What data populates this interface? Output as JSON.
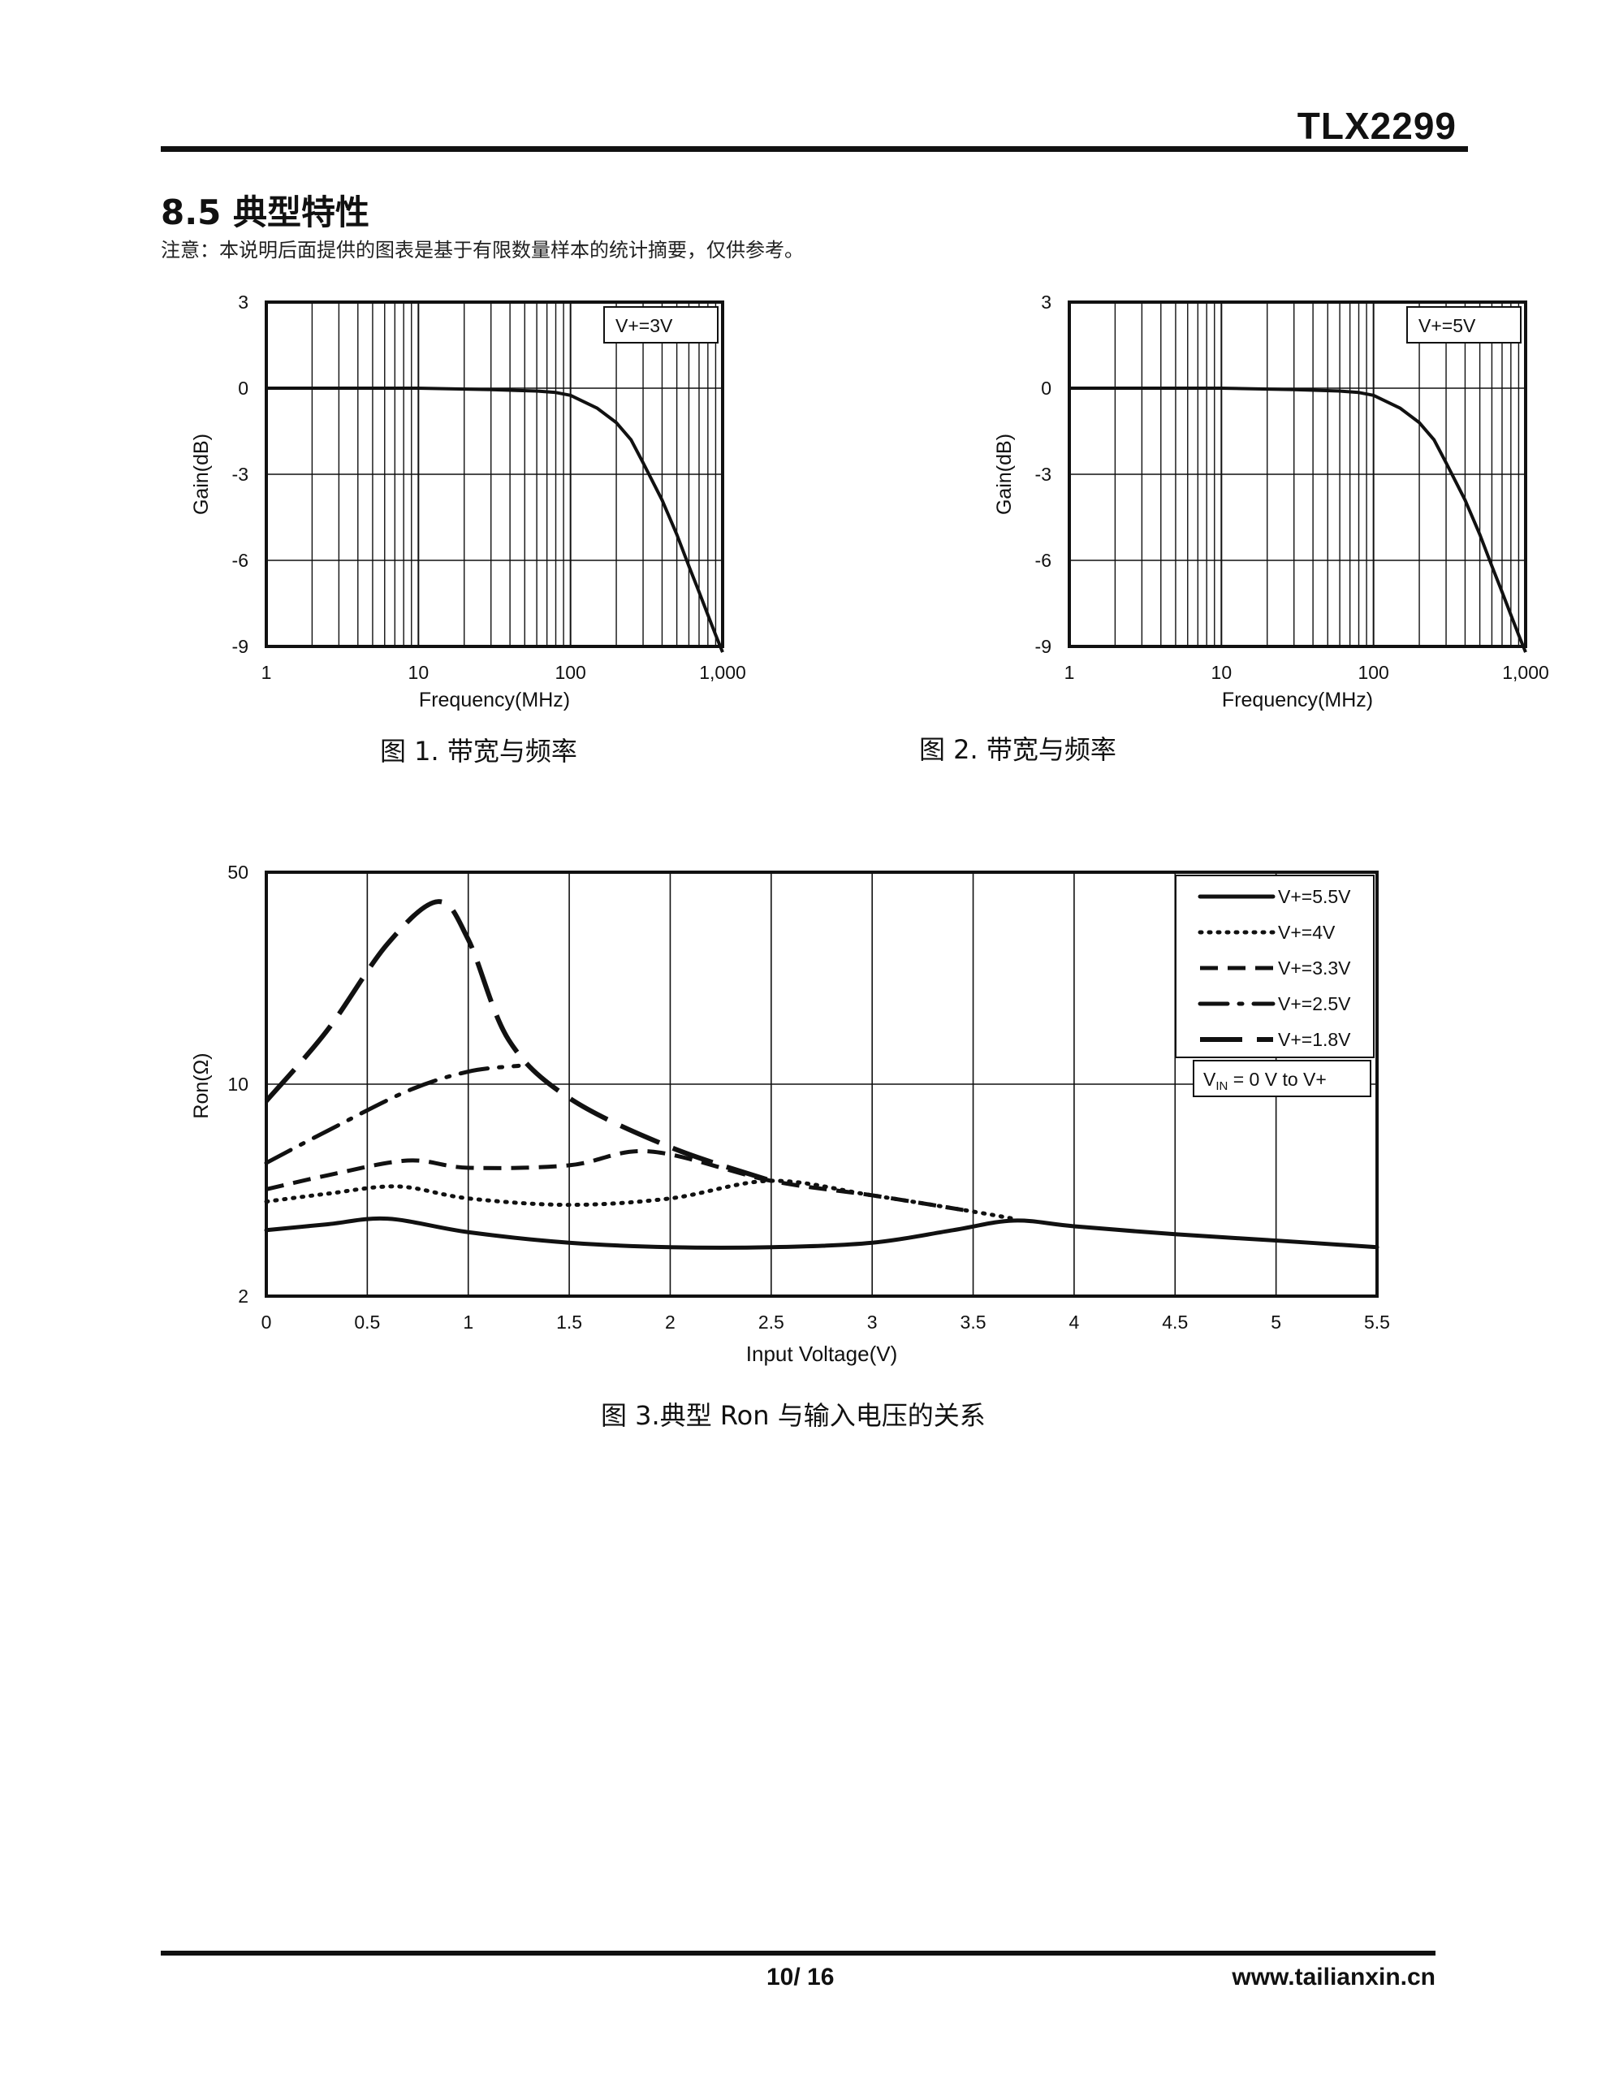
{
  "header": {
    "doc_code": "TLX2299"
  },
  "section": {
    "title": "8.5 典型特性",
    "note": "注意：本说明后面提供的图表是基于有限数量样本的统计摘要，仅供参考。"
  },
  "figures": [
    {
      "caption": "图 1. 带宽与频率"
    },
    {
      "caption": "图 2. 带宽与频率"
    },
    {
      "caption": "图 3.典型 Ron 与输入电压的关系"
    }
  ],
  "chart_data": [
    {
      "type": "line",
      "xlabel": "Frequency(MHz)",
      "ylabel": "Gain(dB)",
      "xscale": "log",
      "xlim": [
        1,
        1000
      ],
      "ylim": [
        -9,
        3
      ],
      "x_ticks": [
        "1",
        "10",
        "100",
        "1,000"
      ],
      "y_ticks": [
        "3",
        "0",
        "-3",
        "-6",
        "-9"
      ],
      "grid": true,
      "annotation": "V+=3V",
      "series": [
        {
          "x": [
            1,
            10,
            30,
            60,
            80,
            100,
            150,
            200,
            250,
            300,
            400,
            500,
            600,
            700,
            800,
            900,
            1000
          ],
          "y": [
            0,
            0,
            -0.05,
            -0.1,
            -0.15,
            -0.25,
            -0.7,
            -1.2,
            -1.8,
            -2.6,
            -3.9,
            -5.1,
            -6.2,
            -7.1,
            -7.9,
            -8.6,
            -9.2
          ]
        }
      ]
    },
    {
      "type": "line",
      "xlabel": "Frequency(MHz)",
      "ylabel": "Gain(dB)",
      "xscale": "log",
      "xlim": [
        1,
        1000
      ],
      "ylim": [
        -9,
        3
      ],
      "x_ticks": [
        "1",
        "10",
        "100",
        "1,000"
      ],
      "y_ticks": [
        "3",
        "0",
        "-3",
        "-6",
        "-9"
      ],
      "grid": true,
      "annotation": "V+=5V",
      "series": [
        {
          "x": [
            1,
            10,
            30,
            60,
            80,
            100,
            150,
            200,
            250,
            300,
            400,
            500,
            600,
            700,
            800,
            900,
            1000
          ],
          "y": [
            0,
            0,
            -0.05,
            -0.1,
            -0.15,
            -0.25,
            -0.7,
            -1.2,
            -1.8,
            -2.6,
            -3.9,
            -5.1,
            -6.2,
            -7.1,
            -7.9,
            -8.6,
            -9.2
          ]
        }
      ]
    },
    {
      "type": "line",
      "xlabel": "Input Voltage(V)",
      "ylabel": "Ron(Ω)",
      "yscale": "log",
      "xlim": [
        0,
        5.5
      ],
      "ylim": [
        2,
        50
      ],
      "x_ticks": [
        "0",
        "0.5",
        "1",
        "1.5",
        "2",
        "2.5",
        "3",
        "3.5",
        "4",
        "4.5",
        "5",
        "5.5"
      ],
      "y_ticks": [
        "50",
        "10",
        "2"
      ],
      "grid": true,
      "legend_position": "top-right",
      "annotation": "V = 0 V to V+",
      "annotation_subscript": "IN",
      "series": [
        {
          "name": "V+=5.5V",
          "x": [
            0,
            0.3,
            0.6,
            1.0,
            1.5,
            2.0,
            2.5,
            3.0,
            3.4,
            3.7,
            4.0,
            4.5,
            5.0,
            5.5
          ],
          "y": [
            3.3,
            3.45,
            3.6,
            3.25,
            3.0,
            2.9,
            2.9,
            3.0,
            3.3,
            3.55,
            3.4,
            3.2,
            3.05,
            2.9
          ]
        },
        {
          "name": "V+=4V",
          "x": [
            0,
            0.3,
            0.65,
            1.0,
            1.5,
            2.0,
            2.5,
            3.0,
            3.5,
            3.7
          ],
          "y": [
            4.1,
            4.35,
            4.6,
            4.2,
            4.0,
            4.2,
            4.8,
            4.3,
            3.8,
            3.6
          ]
        },
        {
          "name": "V+=3.3V",
          "x": [
            0,
            0.3,
            0.7,
            1.0,
            1.5,
            1.9,
            2.5,
            3.0,
            3.5
          ],
          "y": [
            4.5,
            5.0,
            5.6,
            5.3,
            5.4,
            6.0,
            4.8,
            4.3,
            3.8
          ]
        },
        {
          "name": "V+=2.5V",
          "x": [
            0,
            0.3,
            0.7,
            1.0,
            1.25
          ],
          "y": [
            5.5,
            7.0,
            9.5,
            11.0,
            11.5
          ]
        },
        {
          "name": "V+=1.8V",
          "x": [
            0,
            0.3,
            0.6,
            0.85,
            1.0,
            1.2,
            1.5,
            2.0,
            2.5
          ],
          "y": [
            8.8,
            15.0,
            29.0,
            40.0,
            30.0,
            14.0,
            9.0,
            6.2,
            4.8
          ]
        }
      ]
    }
  ],
  "footer": {
    "page": "10/ 16",
    "website": "www.tailianxin.cn"
  }
}
